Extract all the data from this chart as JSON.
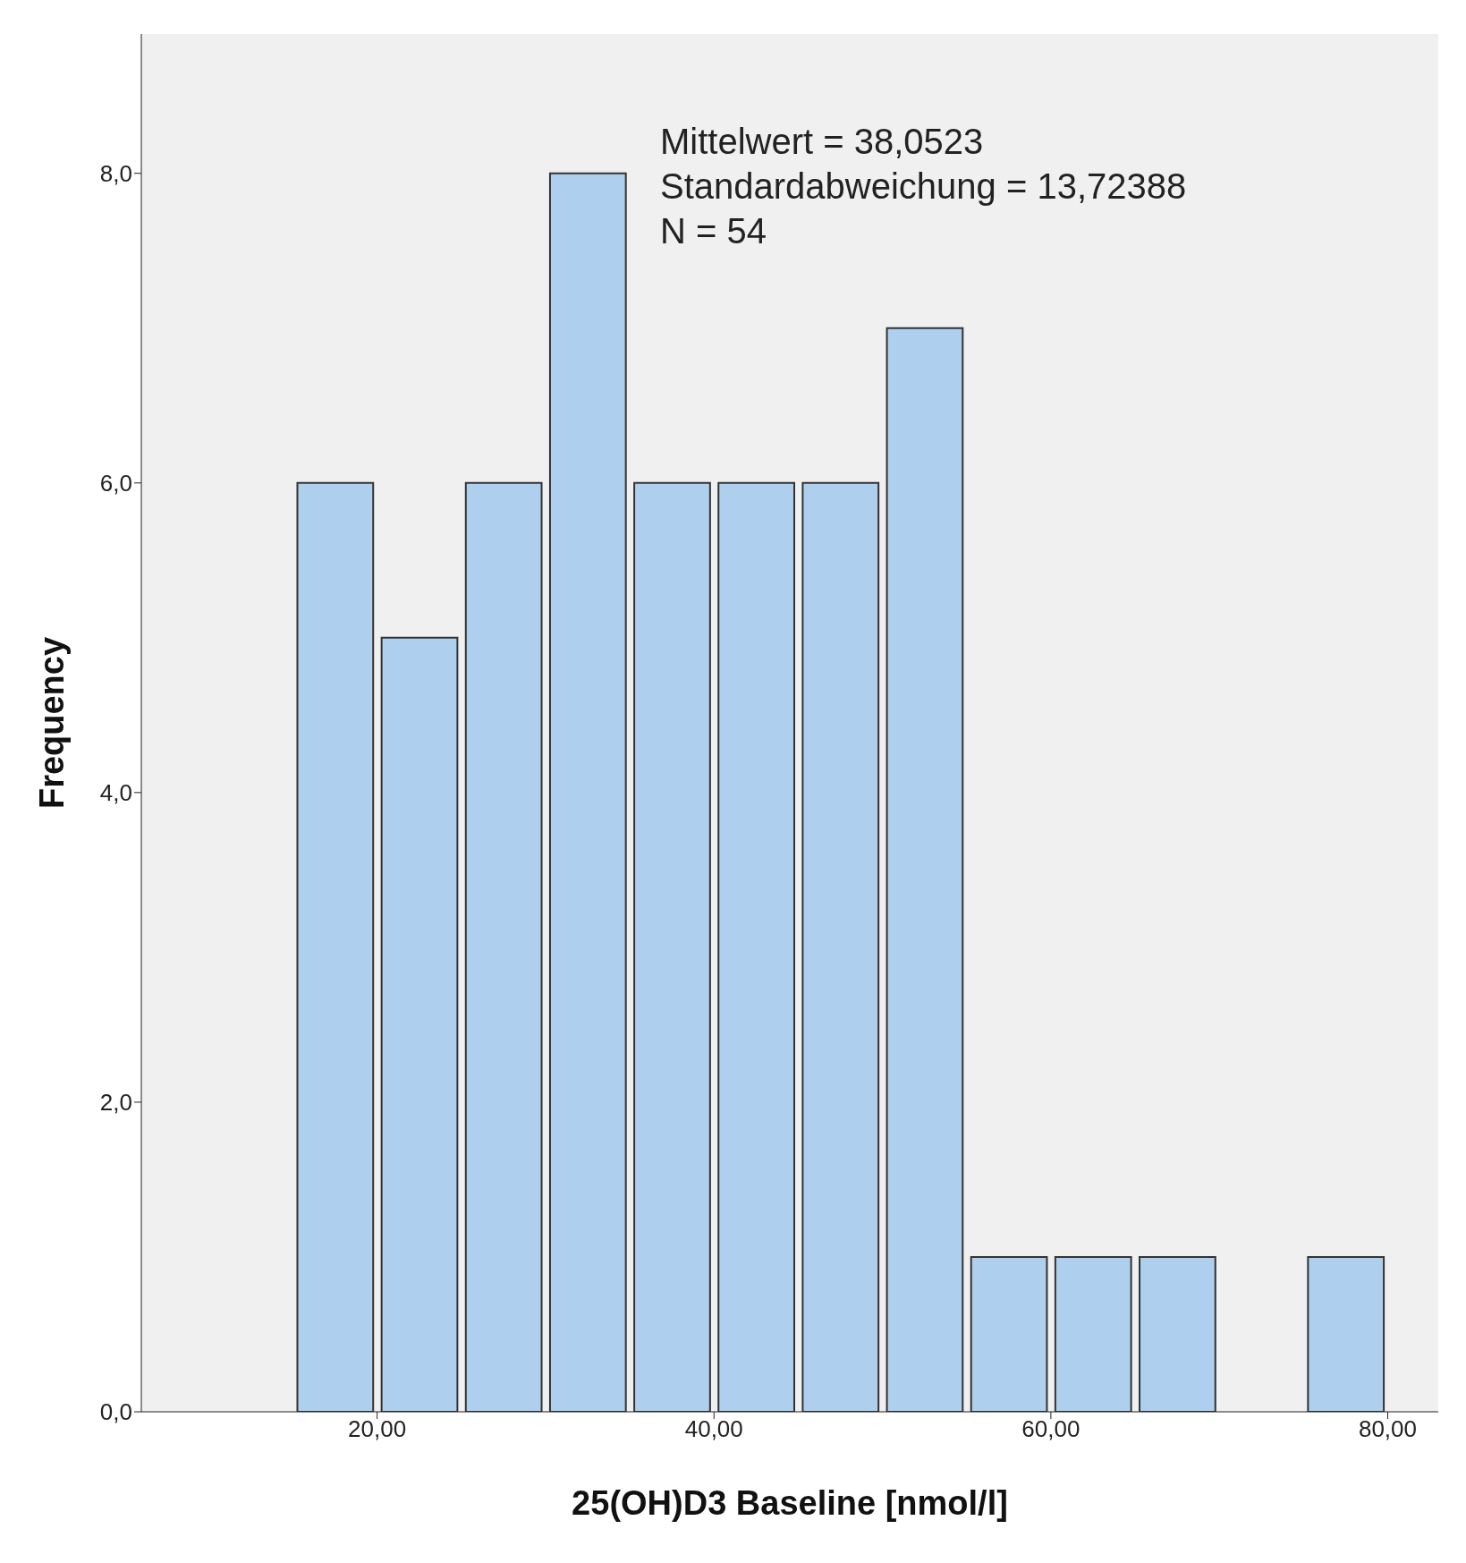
{
  "chart_data": {
    "type": "histogram",
    "xlabel": "25(OH)D3 Baseline [nmol/l]",
    "ylabel": "Frequency",
    "bins": [
      15,
      20,
      25,
      30,
      35,
      40,
      45,
      50,
      55,
      60,
      65,
      70,
      75,
      80
    ],
    "values": [
      6,
      5,
      6,
      8,
      6,
      6,
      6,
      7,
      1,
      1,
      1,
      0,
      1
    ],
    "color": "#aecfed",
    "xlim": [
      6,
      83
    ],
    "ylim": [
      0,
      8.9
    ],
    "xticks": [
      {
        "value": 20,
        "label": "20,00"
      },
      {
        "value": 40,
        "label": "40,00"
      },
      {
        "value": 60,
        "label": "60,00"
      },
      {
        "value": 80,
        "label": "80,00"
      }
    ],
    "yticks": [
      {
        "value": 0,
        "label": "0,0"
      },
      {
        "value": 2,
        "label": "2,0"
      },
      {
        "value": 4,
        "label": "4,0"
      },
      {
        "value": 6,
        "label": "6,0"
      },
      {
        "value": 8,
        "label": "8,0"
      }
    ],
    "annotations": [
      "Mittelwert = 38,0523",
      "Standardabweichung = 13,72388",
      "N = 54"
    ],
    "grid": false
  }
}
